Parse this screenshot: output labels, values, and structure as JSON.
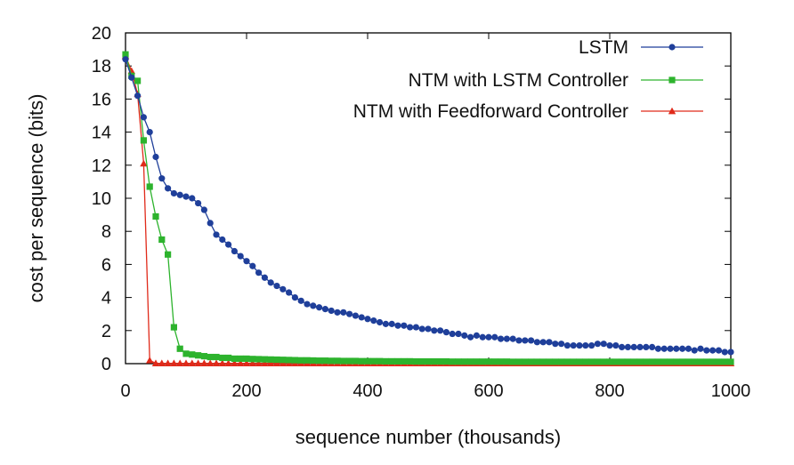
{
  "chart_data": {
    "type": "line",
    "title": "",
    "xlabel": "sequence number (thousands)",
    "ylabel": "cost per sequence (bits)",
    "xlim": [
      0,
      1000
    ],
    "ylim": [
      0,
      20
    ],
    "xticks": [
      0,
      200,
      400,
      600,
      800,
      1000
    ],
    "yticks": [
      0,
      2,
      4,
      6,
      8,
      10,
      12,
      14,
      16,
      18,
      20
    ],
    "grid": false,
    "legend_position": "top-right",
    "series": [
      {
        "name": "LSTM",
        "color": "#1f3f9a",
        "marker": "circle",
        "x": [
          0,
          10,
          20,
          30,
          40,
          50,
          60,
          70,
          80,
          90,
          100,
          110,
          120,
          130,
          140,
          150,
          160,
          170,
          180,
          190,
          200,
          210,
          220,
          230,
          240,
          250,
          260,
          270,
          280,
          290,
          300,
          310,
          320,
          330,
          340,
          350,
          360,
          370,
          380,
          390,
          400,
          410,
          420,
          430,
          440,
          450,
          460,
          470,
          480,
          490,
          500,
          510,
          520,
          530,
          540,
          550,
          560,
          570,
          580,
          590,
          600,
          610,
          620,
          630,
          640,
          650,
          660,
          670,
          680,
          690,
          700,
          710,
          720,
          730,
          740,
          750,
          760,
          770,
          780,
          790,
          800,
          810,
          820,
          830,
          840,
          850,
          860,
          870,
          880,
          890,
          900,
          910,
          920,
          930,
          940,
          950,
          960,
          970,
          980,
          990,
          1000
        ],
        "y": [
          18.4,
          17.3,
          16.2,
          14.9,
          14.0,
          12.5,
          11.2,
          10.6,
          10.3,
          10.2,
          10.1,
          10.0,
          9.7,
          9.3,
          8.5,
          7.8,
          7.5,
          7.2,
          6.8,
          6.5,
          6.2,
          5.9,
          5.5,
          5.2,
          4.9,
          4.7,
          4.5,
          4.3,
          4.0,
          3.8,
          3.6,
          3.5,
          3.4,
          3.3,
          3.2,
          3.1,
          3.1,
          3.0,
          2.9,
          2.8,
          2.7,
          2.6,
          2.5,
          2.4,
          2.4,
          2.3,
          2.3,
          2.2,
          2.2,
          2.1,
          2.1,
          2.0,
          2.0,
          1.9,
          1.8,
          1.8,
          1.7,
          1.6,
          1.7,
          1.6,
          1.6,
          1.6,
          1.5,
          1.5,
          1.5,
          1.4,
          1.4,
          1.4,
          1.3,
          1.3,
          1.3,
          1.2,
          1.2,
          1.1,
          1.1,
          1.1,
          1.1,
          1.1,
          1.2,
          1.2,
          1.1,
          1.1,
          1.0,
          1.0,
          1.0,
          1.0,
          1.0,
          1.0,
          0.9,
          0.9,
          0.9,
          0.9,
          0.9,
          0.9,
          0.8,
          0.9,
          0.8,
          0.8,
          0.8,
          0.7,
          0.7
        ]
      },
      {
        "name": "NTM with LSTM Controller",
        "color": "#2db32d",
        "marker": "square",
        "x": [
          0,
          10,
          20,
          30,
          40,
          50,
          60,
          70,
          80,
          90,
          100,
          110,
          120,
          130,
          140,
          150,
          160,
          170,
          180,
          190,
          200,
          210,
          220,
          230,
          240,
          250,
          260,
          270,
          280,
          290,
          300,
          310,
          320,
          330,
          340,
          350,
          360,
          370,
          380,
          390,
          400,
          410,
          420,
          430,
          440,
          450,
          460,
          470,
          480,
          490,
          500,
          510,
          520,
          530,
          540,
          550,
          560,
          570,
          580,
          590,
          600,
          610,
          620,
          630,
          640,
          650,
          660,
          670,
          680,
          690,
          700,
          710,
          720,
          730,
          740,
          750,
          760,
          770,
          780,
          790,
          800,
          810,
          820,
          830,
          840,
          850,
          860,
          870,
          880,
          890,
          900,
          910,
          920,
          930,
          940,
          950,
          960,
          970,
          980,
          990,
          1000
        ],
        "y": [
          18.7,
          17.4,
          17.1,
          13.5,
          10.7,
          8.9,
          7.5,
          6.6,
          2.2,
          0.9,
          0.6,
          0.55,
          0.5,
          0.45,
          0.4,
          0.4,
          0.35,
          0.35,
          0.3,
          0.3,
          0.3,
          0.28,
          0.27,
          0.26,
          0.25,
          0.24,
          0.23,
          0.22,
          0.21,
          0.2,
          0.2,
          0.19,
          0.18,
          0.18,
          0.17,
          0.17,
          0.16,
          0.16,
          0.16,
          0.15,
          0.15,
          0.15,
          0.15,
          0.14,
          0.14,
          0.14,
          0.14,
          0.14,
          0.13,
          0.13,
          0.13,
          0.13,
          0.13,
          0.13,
          0.12,
          0.12,
          0.12,
          0.12,
          0.12,
          0.12,
          0.12,
          0.12,
          0.12,
          0.12,
          0.11,
          0.11,
          0.11,
          0.11,
          0.11,
          0.11,
          0.11,
          0.11,
          0.11,
          0.11,
          0.11,
          0.11,
          0.11,
          0.11,
          0.11,
          0.11,
          0.11,
          0.11,
          0.11,
          0.11,
          0.11,
          0.11,
          0.11,
          0.11,
          0.11,
          0.11,
          0.11,
          0.11,
          0.11,
          0.11,
          0.11,
          0.11,
          0.11,
          0.11,
          0.11,
          0.11,
          0.11
        ]
      },
      {
        "name": "NTM with Feedforward Controller",
        "color": "#e02a1a",
        "marker": "triangle",
        "x": [
          0,
          10,
          20,
          30,
          40,
          50,
          60,
          70,
          80,
          90,
          100,
          110,
          120,
          130,
          140,
          150,
          160,
          170,
          180,
          190,
          200,
          210,
          220,
          230,
          240,
          250,
          260,
          270,
          280,
          290,
          300,
          310,
          320,
          330,
          340,
          350,
          360,
          370,
          380,
          390,
          400,
          410,
          420,
          430,
          440,
          450,
          460,
          470,
          480,
          490,
          500,
          510,
          520,
          530,
          540,
          550,
          560,
          570,
          580,
          590,
          600,
          610,
          620,
          630,
          640,
          650,
          660,
          670,
          680,
          690,
          700,
          710,
          720,
          730,
          740,
          750,
          760,
          770,
          780,
          790,
          800,
          810,
          820,
          830,
          840,
          850,
          860,
          870,
          880,
          890,
          900,
          910,
          920,
          930,
          940,
          950,
          960,
          970,
          980,
          990,
          1000
        ],
        "y": [
          18.6,
          17.7,
          16.3,
          12.1,
          0.2,
          0.02,
          0.02,
          0.02,
          0.02,
          0.02,
          0.02,
          0.02,
          0.02,
          0.02,
          0.02,
          0.02,
          0.02,
          0.02,
          0.02,
          0.02,
          0.02,
          0.02,
          0.02,
          0.02,
          0.02,
          0.02,
          0.02,
          0.02,
          0.02,
          0.02,
          0.02,
          0.02,
          0.02,
          0.02,
          0.02,
          0.02,
          0.02,
          0.02,
          0.02,
          0.02,
          0.02,
          0.02,
          0.02,
          0.02,
          0.02,
          0.02,
          0.02,
          0.02,
          0.02,
          0.02,
          0.02,
          0.02,
          0.02,
          0.02,
          0.02,
          0.02,
          0.02,
          0.02,
          0.02,
          0.02,
          0.02,
          0.02,
          0.02,
          0.02,
          0.02,
          0.02,
          0.02,
          0.02,
          0.02,
          0.02,
          0.02,
          0.02,
          0.02,
          0.02,
          0.02,
          0.02,
          0.02,
          0.02,
          0.02,
          0.02,
          0.02,
          0.02,
          0.02,
          0.02,
          0.02,
          0.02,
          0.02,
          0.02,
          0.02,
          0.02,
          0.02,
          0.02,
          0.02,
          0.02,
          0.02,
          0.02,
          0.02,
          0.02,
          0.02,
          0.02,
          0.02
        ]
      }
    ]
  }
}
